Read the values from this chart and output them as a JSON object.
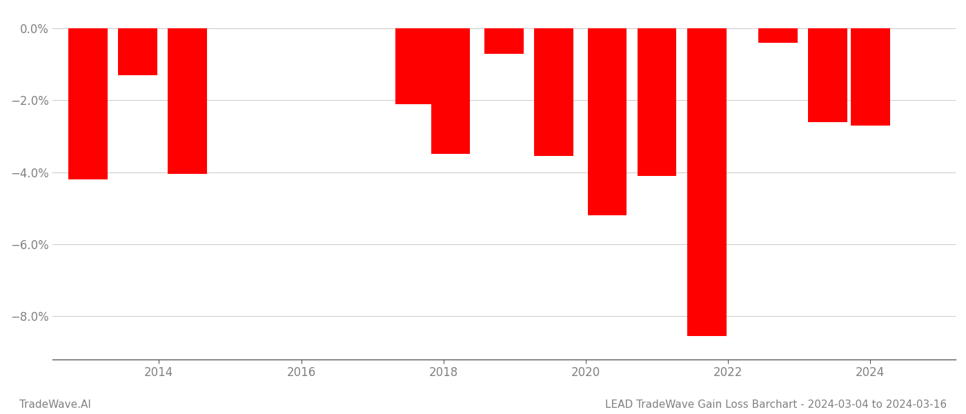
{
  "x_positions": [
    2013.0,
    2013.7,
    2014.4,
    2017.6,
    2018.1,
    2018.85,
    2019.55,
    2020.3,
    2021.0,
    2021.7,
    2022.7,
    2023.4,
    2024.0
  ],
  "values": [
    -4.2,
    -1.3,
    -4.05,
    -2.1,
    -3.5,
    -0.7,
    -3.55,
    -5.2,
    -4.1,
    -8.55,
    -0.4,
    -2.6,
    -2.7
  ],
  "bar_color": "#ff0000",
  "bar_width": 0.55,
  "ylim": [
    -9.2,
    0.5
  ],
  "yticks": [
    0.0,
    -2.0,
    -4.0,
    -6.0,
    -8.0
  ],
  "ytick_labels": [
    "0.0%",
    "−2.0%",
    "−4.0%",
    "−6.0%",
    "−8.0%"
  ],
  "xticks": [
    2014,
    2016,
    2018,
    2020,
    2022,
    2024
  ],
  "xtick_labels": [
    "2014",
    "2016",
    "2018",
    "2020",
    "2022",
    "2024"
  ],
  "xlim": [
    2012.5,
    2025.2
  ],
  "bottom_left_text": "TradeWave.AI",
  "bottom_right_text": "LEAD TradeWave Gain Loss Barchart - 2024-03-04 to 2024-03-16",
  "background_color": "#ffffff",
  "grid_color": "#cccccc",
  "text_color": "#808080"
}
